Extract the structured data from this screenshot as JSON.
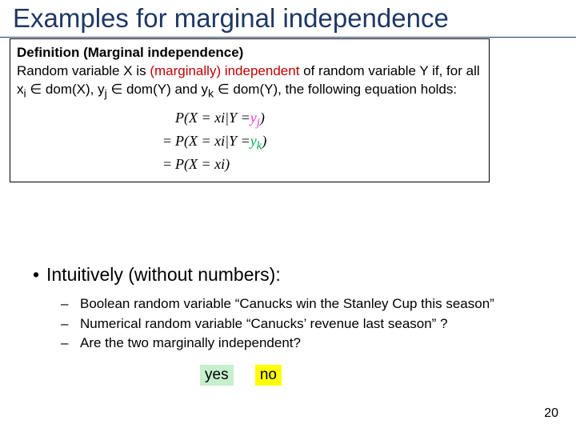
{
  "title": "Examples for marginal independence",
  "defbox": {
    "heading": "Definition (Marginal independence)",
    "line1_pre": "Random variable X is ",
    "line1_red": "(marginally) independent",
    "line1_post": " of random variable Y if, for all x",
    "sub_i": "i",
    "domX": " ∈ dom(X), y",
    "sub_j": "j",
    "domY1": " ∈ dom(Y) and y",
    "sub_k": "k",
    "domY2": " ∈ dom(Y), the following equation holds:",
    "eq1_lhs": "P(X = xi|Y = ",
    "eq1_yj": "y",
    "eq1_yj_sub": "j",
    "eq1_close": ")",
    "eq2_eq": "= ",
    "eq2_body": "P(X = xi|Y = ",
    "eq2_yk": "y",
    "eq2_yk_sub": "k",
    "eq2_close": ")",
    "eq3_eq": "= ",
    "eq3_body": "P(X = xi)"
  },
  "bullet1": "Intuitively (without numbers):",
  "sub1": "Boolean random variable “Canucks win the Stanley Cup this season”",
  "sub2": "Numerical random variable “Canucks’ revenue last season” ?",
  "sub3": "Are the two marginally independent?",
  "ans_yes": "yes",
  "ans_no": "no",
  "page_number": "20",
  "colors": {
    "title": "#1f3864",
    "red": "#c00000",
    "yj": "#ff33cc",
    "yk": "#00b050",
    "yes_bg": "#c6efce",
    "no_bg": "#ffff00",
    "background": "#ffffff"
  }
}
